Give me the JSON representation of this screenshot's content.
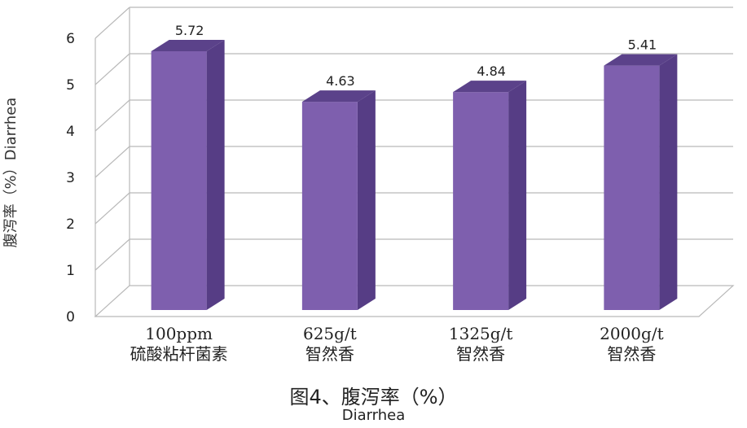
{
  "chart_data": {
    "type": "bar",
    "categories": [
      [
        "100ppm",
        "硫酸粘杆菌素"
      ],
      [
        "625g/t",
        "智然香"
      ],
      [
        "1325g/t",
        "智然香"
      ],
      [
        "2000g/t",
        "智然香"
      ]
    ],
    "values": [
      5.72,
      4.63,
      4.84,
      5.41
    ],
    "data_labels": [
      "5.72",
      "4.63",
      "4.84",
      "5.41"
    ],
    "ylabel": "腹泻率（%）Diarrhea",
    "title": "图4、腹泻率（%）",
    "subtitle": "Diarrhea",
    "ylim": [
      0,
      6
    ],
    "yticks": [
      "0",
      "1",
      "2",
      "3",
      "4",
      "5",
      "6"
    ],
    "grid": true,
    "legend": "none",
    "bar_color": "#7e5fae",
    "bar_side_color": "#563d85",
    "bar_top_color": "#5b428a"
  }
}
